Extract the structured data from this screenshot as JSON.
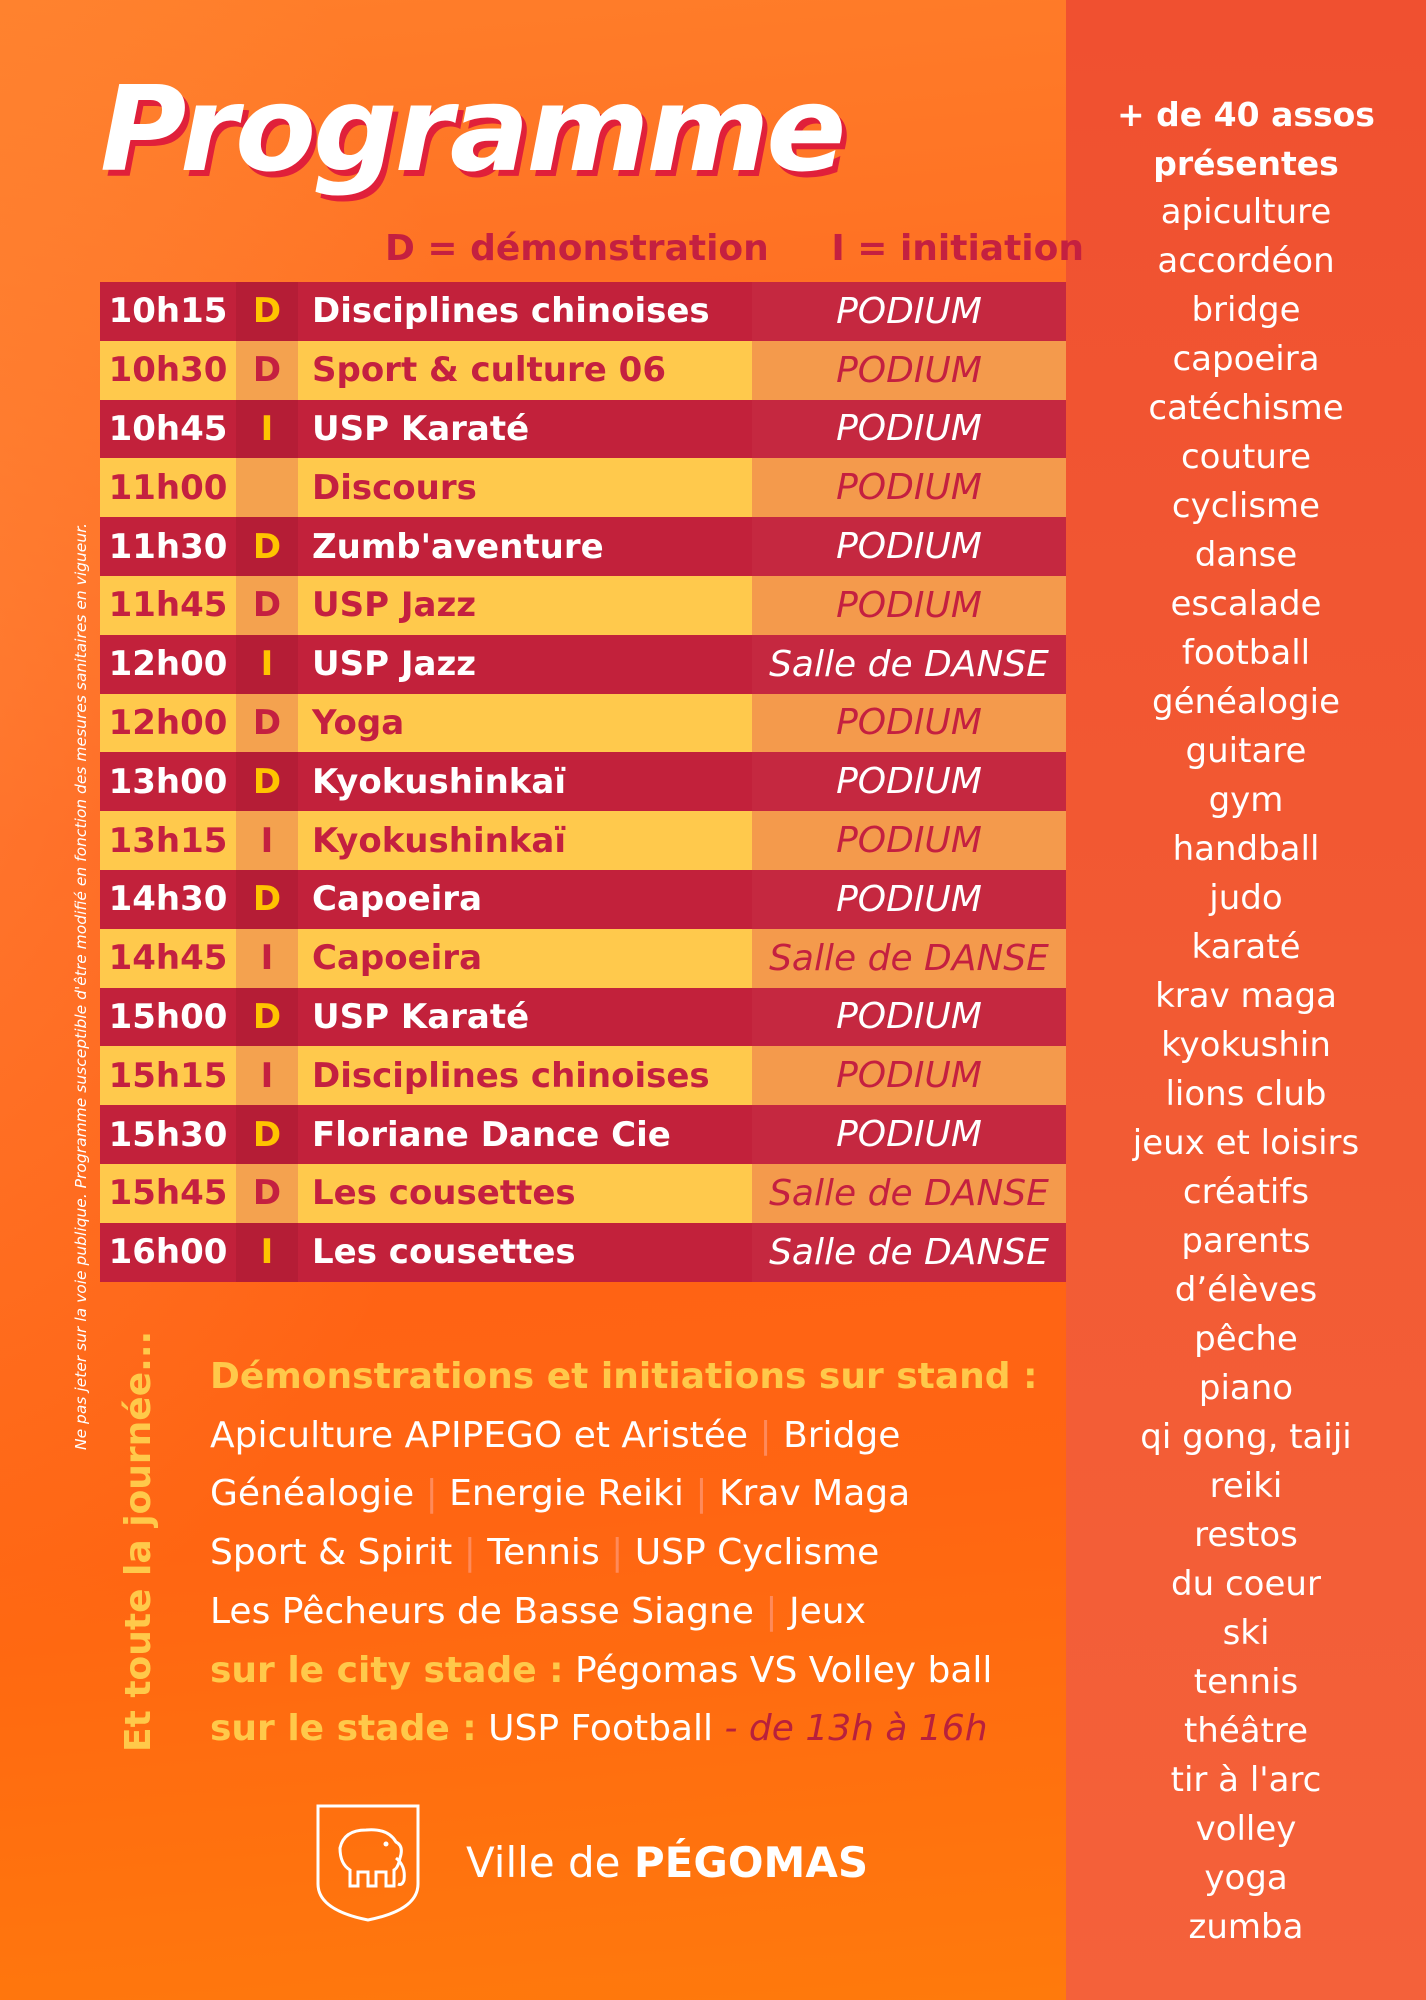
{
  "title": "Programme",
  "legend": {
    "d": "D = démonstration",
    "i": "I = initiation"
  },
  "side_note": "Ne pas jeter sur la voie publique. Programme susceptible d'être modifié en fonction des mesures sanitaires en vigueur.",
  "vertical_heading": "Et toute la journée...",
  "schedule": [
    {
      "time": "10h15",
      "type": "D",
      "activity": "Disciplines chinoises",
      "location": "PODIUM"
    },
    {
      "time": "10h30",
      "type": "D",
      "activity": "Sport & culture 06",
      "location": "PODIUM"
    },
    {
      "time": "10h45",
      "type": "I",
      "activity": "USP Karaté",
      "location": "PODIUM"
    },
    {
      "time": "11h00",
      "type": "",
      "activity": "Discours",
      "location": "PODIUM"
    },
    {
      "time": "11h30",
      "type": "D",
      "activity": "Zumb'aventure",
      "location": "PODIUM"
    },
    {
      "time": "11h45",
      "type": "D",
      "activity": "USP Jazz",
      "location": "PODIUM"
    },
    {
      "time": "12h00",
      "type": "I",
      "activity": "USP Jazz",
      "location": "Salle de DANSE"
    },
    {
      "time": "12h00",
      "type": "D",
      "activity": "Yoga",
      "location": "PODIUM"
    },
    {
      "time": "13h00",
      "type": "D",
      "activity": "Kyokushinkaï",
      "location": "PODIUM"
    },
    {
      "time": "13h15",
      "type": "I",
      "activity": "Kyokushinkaï",
      "location": "PODIUM"
    },
    {
      "time": "14h30",
      "type": "D",
      "activity": "Capoeira",
      "location": "PODIUM"
    },
    {
      "time": "14h45",
      "type": "I",
      "activity": "Capoeira",
      "location": "Salle de DANSE"
    },
    {
      "time": "15h00",
      "type": "D",
      "activity": "USP Karaté",
      "location": "PODIUM"
    },
    {
      "time": "15h15",
      "type": "I",
      "activity": "Disciplines chinoises",
      "location": "PODIUM"
    },
    {
      "time": "15h30",
      "type": "D",
      "activity": "Floriane Dance Cie",
      "location": "PODIUM"
    },
    {
      "time": "15h45",
      "type": "D",
      "activity": "Les cousettes",
      "location": "Salle de DANSE"
    },
    {
      "time": "16h00",
      "type": "I",
      "activity": "Les cousettes",
      "location": "Salle de DANSE"
    }
  ],
  "stand": {
    "heading": "Démonstrations et initiations sur stand :",
    "lines": [
      [
        "Apiculture APIPEGO et Aristée",
        "Bridge"
      ],
      [
        "Généalogie",
        "Energie Reiki",
        "Krav Maga"
      ],
      [
        "Sport & Spirit",
        "Tennis",
        "USP Cyclisme"
      ],
      [
        "Les Pêcheurs de Basse Siagne",
        "Jeux"
      ]
    ],
    "separator": "|",
    "city_label": "sur le city stade :",
    "city_value": "Pégomas VS Volley ball",
    "stadium_label": "sur le stade :",
    "stadium_value": "USP Football",
    "stadium_time": "- de 13h à 16h"
  },
  "footer": {
    "city_prefix": "Ville de",
    "city_name": "PÉGOMAS"
  },
  "side_panel": {
    "heading_line1": "+ de 40 assos",
    "heading_line2": "présentes",
    "items": [
      "apiculture",
      "accordéon",
      "bridge",
      "capoeira",
      "catéchisme",
      "couture",
      "cyclisme",
      "danse",
      "escalade",
      "football",
      "généalogie",
      "guitare",
      "gym",
      "handball",
      "judo",
      "karaté",
      "krav maga",
      "kyokushin",
      "lions club",
      "jeux et loisirs",
      "créatifs",
      "parents",
      "d’élèves",
      "pêche",
      "piano",
      "qi gong, taiji",
      "reiki",
      "restos",
      "du coeur",
      "ski",
      "tennis",
      "théâtre",
      "tir à l'arc",
      "volley",
      "yoga",
      "zumba"
    ]
  },
  "colors": {
    "dark_row": "#c2213b",
    "light_row": "#ffc94c",
    "accent_yellow": "#ffc400",
    "side_panel": "#f25a33"
  }
}
